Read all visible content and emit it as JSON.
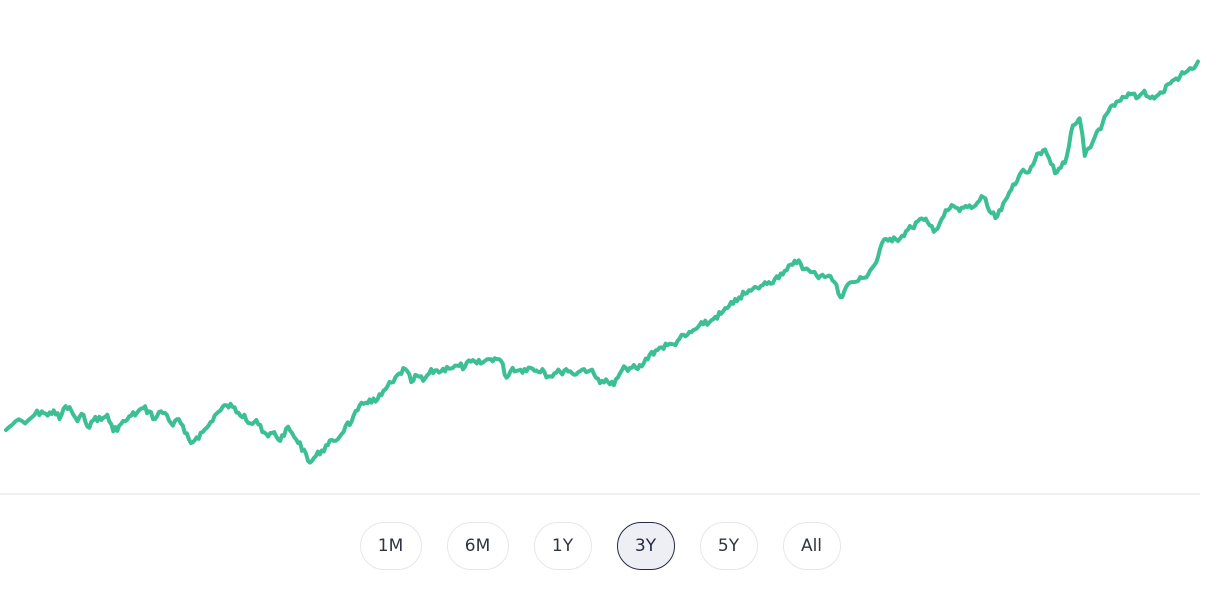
{
  "chart_data": {
    "type": "line",
    "line_color": "#3dbf94",
    "baseline_color": "#eef0f2",
    "grid": false,
    "legend": "none",
    "xlim": [
      0,
      1
    ],
    "ylim": [
      0,
      1
    ],
    "points": [
      [
        0.0,
        0.115
      ],
      [
        0.008,
        0.135
      ],
      [
        0.016,
        0.13
      ],
      [
        0.024,
        0.15
      ],
      [
        0.03,
        0.158
      ],
      [
        0.035,
        0.148
      ],
      [
        0.04,
        0.16
      ],
      [
        0.045,
        0.14
      ],
      [
        0.05,
        0.17
      ],
      [
        0.055,
        0.158
      ],
      [
        0.06,
        0.135
      ],
      [
        0.065,
        0.15
      ],
      [
        0.07,
        0.12
      ],
      [
        0.075,
        0.145
      ],
      [
        0.08,
        0.138
      ],
      [
        0.085,
        0.15
      ],
      [
        0.09,
        0.112
      ],
      [
        0.095,
        0.125
      ],
      [
        0.1,
        0.135
      ],
      [
        0.105,
        0.148
      ],
      [
        0.11,
        0.155
      ],
      [
        0.115,
        0.165
      ],
      [
        0.12,
        0.158
      ],
      [
        0.125,
        0.14
      ],
      [
        0.13,
        0.158
      ],
      [
        0.135,
        0.15
      ],
      [
        0.14,
        0.125
      ],
      [
        0.145,
        0.14
      ],
      [
        0.15,
        0.108
      ],
      [
        0.155,
        0.085
      ],
      [
        0.16,
        0.098
      ],
      [
        0.165,
        0.11
      ],
      [
        0.17,
        0.125
      ],
      [
        0.175,
        0.148
      ],
      [
        0.18,
        0.16
      ],
      [
        0.185,
        0.172
      ],
      [
        0.19,
        0.168
      ],
      [
        0.195,
        0.155
      ],
      [
        0.2,
        0.15
      ],
      [
        0.205,
        0.13
      ],
      [
        0.21,
        0.138
      ],
      [
        0.215,
        0.11
      ],
      [
        0.22,
        0.1
      ],
      [
        0.225,
        0.11
      ],
      [
        0.23,
        0.09
      ],
      [
        0.235,
        0.118
      ],
      [
        0.24,
        0.108
      ],
      [
        0.245,
        0.085
      ],
      [
        0.25,
        0.07
      ],
      [
        0.255,
        0.04
      ],
      [
        0.26,
        0.055
      ],
      [
        0.265,
        0.068
      ],
      [
        0.27,
        0.08
      ],
      [
        0.275,
        0.09
      ],
      [
        0.28,
        0.1
      ],
      [
        0.285,
        0.125
      ],
      [
        0.29,
        0.135
      ],
      [
        0.295,
        0.16
      ],
      [
        0.3,
        0.175
      ],
      [
        0.305,
        0.185
      ],
      [
        0.31,
        0.18
      ],
      [
        0.315,
        0.195
      ],
      [
        0.32,
        0.215
      ],
      [
        0.325,
        0.225
      ],
      [
        0.33,
        0.245
      ],
      [
        0.335,
        0.255
      ],
      [
        0.34,
        0.225
      ],
      [
        0.345,
        0.24
      ],
      [
        0.35,
        0.228
      ],
      [
        0.355,
        0.245
      ],
      [
        0.36,
        0.252
      ],
      [
        0.365,
        0.25
      ],
      [
        0.37,
        0.26
      ],
      [
        0.375,
        0.258
      ],
      [
        0.38,
        0.262
      ],
      [
        0.385,
        0.26
      ],
      [
        0.39,
        0.272
      ],
      [
        0.395,
        0.268
      ],
      [
        0.4,
        0.27
      ],
      [
        0.405,
        0.278
      ],
      [
        0.41,
        0.28
      ],
      [
        0.415,
        0.275
      ],
      [
        0.42,
        0.235
      ],
      [
        0.425,
        0.258
      ],
      [
        0.43,
        0.252
      ],
      [
        0.435,
        0.255
      ],
      [
        0.44,
        0.258
      ],
      [
        0.445,
        0.252
      ],
      [
        0.45,
        0.255
      ],
      [
        0.455,
        0.238
      ],
      [
        0.46,
        0.245
      ],
      [
        0.465,
        0.248
      ],
      [
        0.47,
        0.255
      ],
      [
        0.475,
        0.245
      ],
      [
        0.48,
        0.248
      ],
      [
        0.485,
        0.255
      ],
      [
        0.49,
        0.252
      ],
      [
        0.495,
        0.235
      ],
      [
        0.5,
        0.228
      ],
      [
        0.505,
        0.225
      ],
      [
        0.51,
        0.218
      ],
      [
        0.515,
        0.245
      ],
      [
        0.52,
        0.258
      ],
      [
        0.525,
        0.258
      ],
      [
        0.53,
        0.255
      ],
      [
        0.535,
        0.268
      ],
      [
        0.54,
        0.288
      ],
      [
        0.545,
        0.298
      ],
      [
        0.55,
        0.305
      ],
      [
        0.555,
        0.31
      ],
      [
        0.56,
        0.312
      ],
      [
        0.565,
        0.325
      ],
      [
        0.57,
        0.33
      ],
      [
        0.575,
        0.34
      ],
      [
        0.58,
        0.35
      ],
      [
        0.585,
        0.358
      ],
      [
        0.59,
        0.362
      ],
      [
        0.595,
        0.375
      ],
      [
        0.6,
        0.382
      ],
      [
        0.605,
        0.395
      ],
      [
        0.61,
        0.405
      ],
      [
        0.615,
        0.42
      ],
      [
        0.62,
        0.428
      ],
      [
        0.625,
        0.435
      ],
      [
        0.63,
        0.442
      ],
      [
        0.635,
        0.448
      ],
      [
        0.64,
        0.455
      ],
      [
        0.645,
        0.462
      ],
      [
        0.65,
        0.475
      ],
      [
        0.655,
        0.482
      ],
      [
        0.66,
        0.495
      ],
      [
        0.665,
        0.505
      ],
      [
        0.67,
        0.485
      ],
      [
        0.675,
        0.478
      ],
      [
        0.68,
        0.47
      ],
      [
        0.685,
        0.472
      ],
      [
        0.69,
        0.47
      ],
      [
        0.695,
        0.455
      ],
      [
        0.7,
        0.42
      ],
      [
        0.705,
        0.445
      ],
      [
        0.71,
        0.455
      ],
      [
        0.715,
        0.458
      ],
      [
        0.72,
        0.465
      ],
      [
        0.725,
        0.482
      ],
      [
        0.73,
        0.5
      ],
      [
        0.735,
        0.545
      ],
      [
        0.74,
        0.55
      ],
      [
        0.745,
        0.558
      ],
      [
        0.75,
        0.555
      ],
      [
        0.755,
        0.572
      ],
      [
        0.76,
        0.58
      ],
      [
        0.765,
        0.595
      ],
      [
        0.77,
        0.598
      ],
      [
        0.775,
        0.585
      ],
      [
        0.78,
        0.575
      ],
      [
        0.785,
        0.6
      ],
      [
        0.79,
        0.62
      ],
      [
        0.795,
        0.63
      ],
      [
        0.8,
        0.618
      ],
      [
        0.805,
        0.63
      ],
      [
        0.81,
        0.625
      ],
      [
        0.815,
        0.638
      ],
      [
        0.82,
        0.65
      ],
      [
        0.825,
        0.618
      ],
      [
        0.83,
        0.602
      ],
      [
        0.835,
        0.62
      ],
      [
        0.84,
        0.65
      ],
      [
        0.845,
        0.68
      ],
      [
        0.85,
        0.7
      ],
      [
        0.855,
        0.708
      ],
      [
        0.86,
        0.72
      ],
      [
        0.865,
        0.75
      ],
      [
        0.87,
        0.758
      ],
      [
        0.875,
        0.74
      ],
      [
        0.88,
        0.705
      ],
      [
        0.885,
        0.718
      ],
      [
        0.89,
        0.745
      ],
      [
        0.895,
        0.815
      ],
      [
        0.9,
        0.83
      ],
      [
        0.902,
        0.81
      ],
      [
        0.905,
        0.745
      ],
      [
        0.91,
        0.765
      ],
      [
        0.915,
        0.8
      ],
      [
        0.92,
        0.82
      ],
      [
        0.925,
        0.848
      ],
      [
        0.93,
        0.86
      ],
      [
        0.935,
        0.872
      ],
      [
        0.94,
        0.88
      ],
      [
        0.945,
        0.888
      ],
      [
        0.95,
        0.88
      ],
      [
        0.955,
        0.895
      ],
      [
        0.96,
        0.878
      ],
      [
        0.965,
        0.882
      ],
      [
        0.97,
        0.89
      ],
      [
        0.975,
        0.91
      ],
      [
        0.98,
        0.92
      ],
      [
        0.985,
        0.928
      ],
      [
        0.99,
        0.938
      ],
      [
        0.995,
        0.945
      ],
      [
        1.0,
        0.962
      ]
    ]
  },
  "range_selector": {
    "buttons": [
      {
        "label": "1M",
        "active": false
      },
      {
        "label": "6M",
        "active": false
      },
      {
        "label": "1Y",
        "active": false
      },
      {
        "label": "3Y",
        "active": true
      },
      {
        "label": "5Y",
        "active": false
      },
      {
        "label": "All",
        "active": false
      }
    ]
  }
}
